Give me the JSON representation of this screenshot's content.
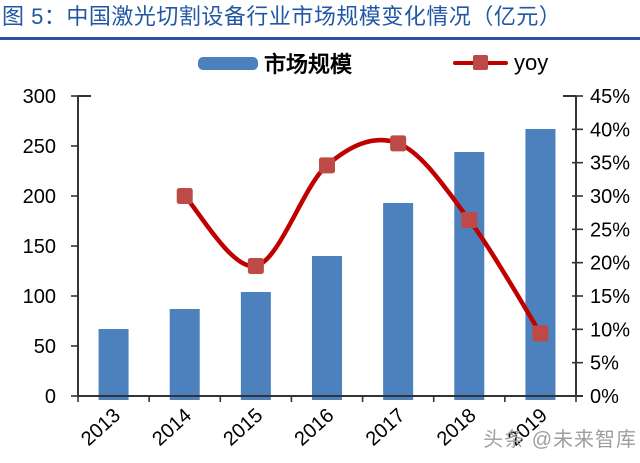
{
  "figure": {
    "label": "图 5：",
    "title": "中国激光切割设备行业市场规模变化情况（亿元）"
  },
  "legend": {
    "items": [
      {
        "label": "市场规模",
        "type": "bar"
      },
      {
        "label": "yoy",
        "type": "line"
      }
    ]
  },
  "watermark": "头条 @未来智库",
  "colors": {
    "bar": "#4D81BD",
    "line": "#C00000",
    "marker": "#BD4A47",
    "title": "#2157A4",
    "rule": "#27549F",
    "axis": "#333333",
    "tick_text": "#000000",
    "watermark": "#9E9E9E"
  },
  "chart_data": {
    "type": "bar+line",
    "title": "中国激光切割设备行业市场规模变化情况（亿元）",
    "categories": [
      "2013",
      "2014",
      "2015",
      "2016",
      "2017",
      "2018",
      "2019"
    ],
    "series": [
      {
        "name": "市场规模",
        "type": "bar",
        "axis": "left",
        "values": [
          67,
          87,
          104,
          140,
          193,
          244,
          267
        ]
      },
      {
        "name": "yoy",
        "type": "line",
        "axis": "right",
        "unit": "%",
        "values": [
          null,
          30.0,
          19.5,
          34.6,
          37.9,
          26.4,
          9.4
        ]
      }
    ],
    "left_axis": {
      "min": 0,
      "max": 300,
      "step": 50,
      "tick_labels": [
        "0",
        "50",
        "100",
        "150",
        "200",
        "250",
        "300"
      ]
    },
    "right_axis": {
      "min": 0,
      "max": 45,
      "step": 5,
      "tick_labels": [
        "0%",
        "5%",
        "10%",
        "15%",
        "20%",
        "25%",
        "30%",
        "35%",
        "40%",
        "45%"
      ]
    },
    "grid": false,
    "legend_position": "top",
    "x_tick_rotation": -42
  }
}
